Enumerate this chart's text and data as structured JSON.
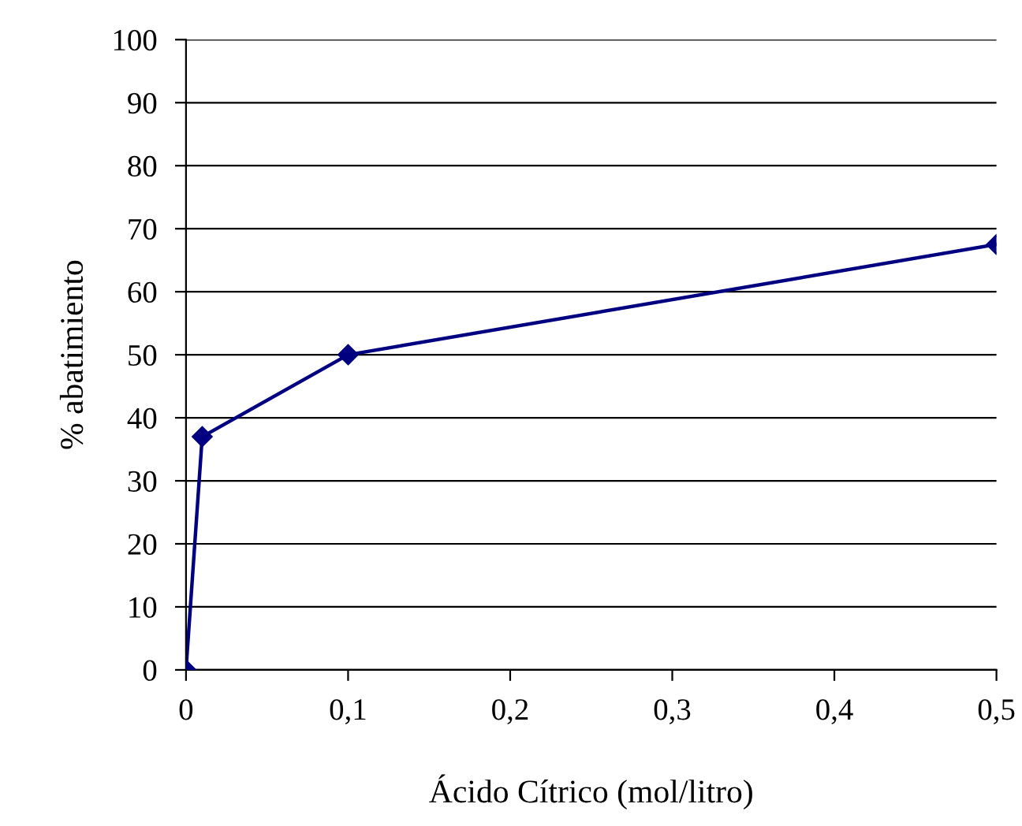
{
  "chart_data": {
    "type": "line",
    "xlabel": "Ácido Cítrico (mol/litro)",
    "ylabel": "% abatimiento",
    "x": [
      0,
      0.01,
      0.1,
      0.5
    ],
    "series": [
      {
        "color": "#000080",
        "values": [
          0,
          37,
          50,
          67.5
        ]
      }
    ],
    "xlim": [
      0,
      0.5
    ],
    "xticks": [
      0,
      {
        "value": 0.1,
        "label": "0,1"
      },
      {
        "value": 0.2,
        "label": "0,2"
      },
      {
        "value": 0.3,
        "label": "0,3"
      },
      {
        "value": 0.4,
        "label": "0,4"
      },
      {
        "value": 0.5,
        "label": "0,5"
      }
    ],
    "ylim": [
      0,
      100
    ],
    "yticks": [
      0,
      10,
      20,
      30,
      40,
      50,
      60,
      70,
      80,
      90,
      100
    ],
    "grid": "y",
    "marker": "diamond",
    "line_style": "solid"
  }
}
